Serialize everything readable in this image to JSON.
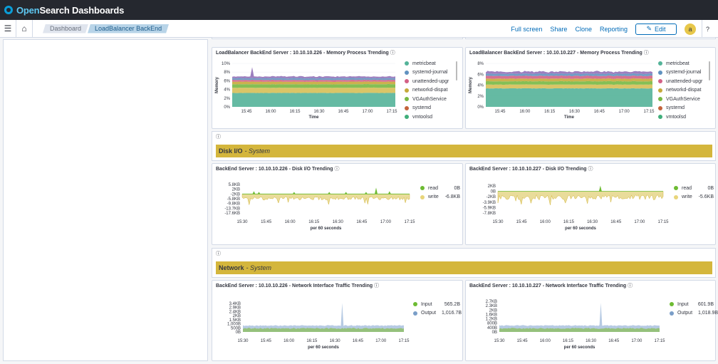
{
  "header": {
    "brand_part1": "Open",
    "brand_part2": "Search Dashboards"
  },
  "nav": {
    "breadcrumbs": [
      "Dashboard",
      "LoadBalancer BackEnd"
    ],
    "links": [
      "Full screen",
      "Share",
      "Clone",
      "Reporting"
    ],
    "edit_label": "Edit",
    "avatar_letter": "a",
    "help_glyph": "?"
  },
  "icons": {
    "menu": "menu-icon",
    "home": "home-icon",
    "pencil": "pencil-icon",
    "info": "info-icon"
  },
  "sections": {
    "disk": {
      "title": "Disk I/O",
      "subtitle": "- System",
      "info": "ⓘ"
    },
    "network": {
      "title": "Network",
      "subtitle": "- System",
      "info": "ⓘ"
    }
  },
  "colors": {
    "accent": "#d4b63c",
    "metricbeat": "#54b399",
    "systemd_journal": "#6092c0",
    "unattended": "#d36086",
    "networkd": "#9170b8",
    "vgauth": "#ca8eae",
    "systemd": "#d6bf57",
    "vmtoolsd": "#b9a888",
    "read": "#6dbb32",
    "write": "#e8d57a",
    "input": "#6dbb32",
    "output": "#7a9ec8"
  },
  "panels": {
    "mem226": {
      "title": "LoadBalancer BackEnd Server : 10.10.10.226 - Memory Process Trending",
      "ylabel": "Memory",
      "xlabel": "Time",
      "yticks": [
        "10%",
        "8%",
        "6%",
        "4%",
        "2%",
        "0%"
      ],
      "xticks": [
        "15:45",
        "16:00",
        "16:15",
        "16:30",
        "16:45",
        "17:00",
        "17:15"
      ],
      "legend": [
        {
          "name": "metricbeat",
          "color": "#54b399"
        },
        {
          "name": "systemd-journal",
          "color": "#6092c0"
        },
        {
          "name": "unattended-upgr",
          "color": "#d36086"
        },
        {
          "name": "networkd-dispat",
          "color": "#c6a93a"
        },
        {
          "name": "VGAuthService",
          "color": "#78b843"
        },
        {
          "name": "systemd",
          "color": "#c4633b"
        },
        {
          "name": "vmtoolsd",
          "color": "#3fae7a"
        }
      ]
    },
    "mem227": {
      "title": "LoadBalancer BackEnd Server : 10.10.10.227 - Memory Process Trending",
      "ylabel": "Memory",
      "xlabel": "Time",
      "yticks": [
        "8%",
        "6%",
        "4%",
        "2%",
        "0%"
      ],
      "xticks": [
        "15:45",
        "16:00",
        "16:15",
        "16:30",
        "16:45",
        "17:00",
        "17:15"
      ],
      "legend": [
        {
          "name": "metricbeat",
          "color": "#54b399"
        },
        {
          "name": "systemd-journal",
          "color": "#6092c0"
        },
        {
          "name": "unattended-upgr",
          "color": "#d36086"
        },
        {
          "name": "networkd-dispat",
          "color": "#c6a93a"
        },
        {
          "name": "VGAuthService",
          "color": "#78b843"
        },
        {
          "name": "systemd",
          "color": "#c4633b"
        },
        {
          "name": "vmtoolsd",
          "color": "#3fae7a"
        }
      ]
    },
    "disk226": {
      "title": "BackEnd Server : 10.10.10.226 - Disk I/O Trending",
      "yticks": [
        "5.8KB",
        "2KB",
        "-2KB",
        "-5.8KB",
        "-9.8KB",
        "-13.7KB",
        "-17.6KB"
      ],
      "xticks": [
        "15:30",
        "15:45",
        "16:00",
        "16:15",
        "16:30",
        "16:45",
        "17:00",
        "17:15"
      ],
      "xlabel": "per 60 seconds",
      "legend": [
        {
          "name": "read",
          "value": "0B",
          "color": "#6dbb32"
        },
        {
          "name": "write",
          "value": "-6.8KB",
          "color": "#e8d57a"
        }
      ]
    },
    "disk227": {
      "title": "BackEnd Server : 10.10.10.227 - Disk I/O Trending",
      "yticks": [
        "2KB",
        "0B",
        "-2KB",
        "-3.9KB",
        "-5.9KB",
        "-7.8KB"
      ],
      "xticks": [
        "15:30",
        "15:45",
        "16:00",
        "16:15",
        "16:30",
        "16:45",
        "17:00",
        "17:15"
      ],
      "xlabel": "per 60 seconds",
      "legend": [
        {
          "name": "read",
          "value": "0B",
          "color": "#6dbb32"
        },
        {
          "name": "write",
          "value": "-5.6KB",
          "color": "#e8d57a"
        }
      ]
    },
    "net226": {
      "title": "BackEnd Server : 10.10.10.226 - Network Interface Traffic Trending",
      "yticks": [
        "3.4KB",
        "2.9KB",
        "2.4KB",
        "2KB",
        "1.5KB",
        "1,000B",
        "500B",
        "0B"
      ],
      "xticks": [
        "15:30",
        "15:45",
        "16:00",
        "16:15",
        "16:30",
        "16:45",
        "17:00",
        "17:15"
      ],
      "xlabel": "per 60 seconds",
      "legend": [
        {
          "name": "Input",
          "value": "565.2B",
          "color": "#6dbb32"
        },
        {
          "name": "Output",
          "value": "1,016.7B",
          "color": "#7a9ec8"
        }
      ]
    },
    "net227": {
      "title": "BackEnd Server : 10.10.10.227 - Network Interface Traffic Trending",
      "yticks": [
        "2.7KB",
        "2.3KB",
        "2KB",
        "1.6KB",
        "1.2KB",
        "800B",
        "400B",
        "0B"
      ],
      "xticks": [
        "15:30",
        "15:45",
        "16:00",
        "16:15",
        "16:30",
        "16:45",
        "17:00",
        "17:15"
      ],
      "xlabel": "per 60 seconds",
      "legend": [
        {
          "name": "Input",
          "value": "601.9B",
          "color": "#6dbb32"
        },
        {
          "name": "Output",
          "value": "1,018.9B",
          "color": "#7a9ec8"
        }
      ]
    }
  }
}
